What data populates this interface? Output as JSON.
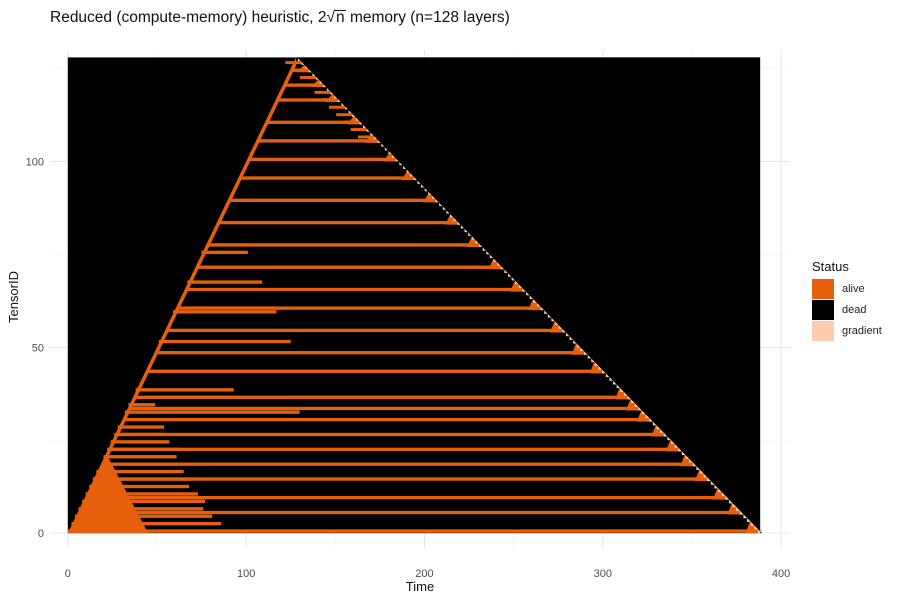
{
  "chart_data": {
    "type": "heatmap",
    "title": {
      "prefix": "Reduced (compute-memory) heuristic, 2",
      "radicand": "n",
      "suffix": " memory (n=128 layers)"
    },
    "xlabel": "Time",
    "ylabel": "TensorID",
    "xlim": [
      -10,
      405
    ],
    "ylim": [
      -4,
      130
    ],
    "x_ticks": [
      "0",
      "100",
      "200",
      "300",
      "400"
    ],
    "x_tick_values": [
      0,
      100,
      200,
      300,
      400
    ],
    "y_ticks": [
      "0",
      "50",
      "100"
    ],
    "y_tick_values": [
      0,
      50,
      100
    ],
    "grid": true,
    "legend": {
      "title": "Status",
      "position": "right",
      "entries": [
        {
          "label": "alive",
          "color": "#E6600C"
        },
        {
          "label": "dead",
          "color": "#000000"
        },
        {
          "label": "gradient",
          "color": "#FFCBAE"
        }
      ]
    },
    "n_layers": 128,
    "tensor_id_range": [
      0,
      128
    ],
    "time_range": [
      0,
      388
    ],
    "description_data": {
      "forward_pass_end_time": 128,
      "backward_pass_end_time": 388,
      "alive_tail_tensors": [
        {
          "tensor": 0,
          "end": 45
        },
        {
          "tensor": 2,
          "end": 86
        },
        {
          "tensor": 4,
          "end": 81
        },
        {
          "tensor": 6,
          "end": 76
        },
        {
          "tensor": 8,
          "end": 77
        },
        {
          "tensor": 10,
          "end": 73
        },
        {
          "tensor": 12,
          "end": 68
        },
        {
          "tensor": 14,
          "end": 70
        },
        {
          "tensor": 16,
          "end": 65
        },
        {
          "tensor": 20,
          "end": 61
        },
        {
          "tensor": 22,
          "end": 62
        },
        {
          "tensor": 24,
          "end": 57
        },
        {
          "tensor": 26,
          "end": 53
        },
        {
          "tensor": 28,
          "end": 54
        },
        {
          "tensor": 32,
          "end": 130
        },
        {
          "tensor": 34,
          "end": 49
        },
        {
          "tensor": 38,
          "end": 93
        },
        {
          "tensor": 51,
          "end": 125
        },
        {
          "tensor": 59,
          "end": 117
        },
        {
          "tensor": 67,
          "end": 109
        },
        {
          "tensor": 75,
          "end": 101
        }
      ],
      "checkpoint_rows": [
        0,
        5,
        9,
        14,
        18,
        22,
        26,
        30,
        33,
        36,
        43,
        48,
        54,
        60,
        65,
        71,
        77,
        83,
        89,
        95,
        100,
        105,
        110,
        116,
        120,
        124
      ]
    }
  }
}
